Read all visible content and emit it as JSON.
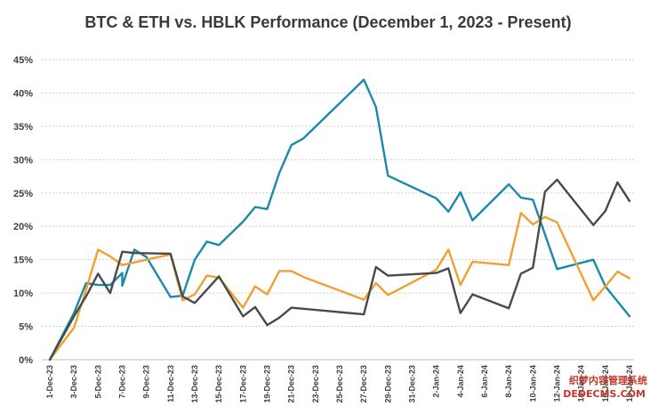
{
  "chart_data": {
    "type": "line",
    "title": "BTC & ETH vs. HBLK Performance (December 1, 2023 - Present)",
    "xlabel": "",
    "ylabel": "",
    "ylim": [
      0,
      45
    ],
    "yticks": [
      "0%",
      "5%",
      "10%",
      "15%",
      "20%",
      "25%",
      "30%",
      "35%",
      "40%",
      "45%"
    ],
    "x_tick_labels": [
      "1-Dec-23",
      "3-Dec-23",
      "5-Dec-23",
      "7-Dec-23",
      "9-Dec-23",
      "11-Dec-23",
      "13-Dec-23",
      "15-Dec-23",
      "17-Dec-23",
      "19-Dec-23",
      "21-Dec-23",
      "23-Dec-23",
      "25-Dec-23",
      "27-Dec-23",
      "29-Dec-23",
      "31-Dec-23",
      "2-Jan-24",
      "4-Jan-24",
      "6-Jan-24",
      "8-Jan-24",
      "10-Jan-24",
      "12-Jan-24",
      "14-Jan-24",
      "16-Jan-24",
      "18-Jan-24"
    ],
    "grid": true,
    "legend": "none",
    "series": [
      {
        "color": "#1a8aa8",
        "x": [
          "1-Dec-23",
          "3-Dec-23",
          "4-Dec-23",
          "5-Dec-23",
          "6-Dec-23",
          "7-Dec-23",
          "7-Dec-23",
          "8-Dec-23",
          "9-Dec-23",
          "11-Dec-23",
          "12-Dec-23",
          "13-Dec-23",
          "14-Dec-23",
          "15-Dec-23",
          "17-Dec-23",
          "18-Dec-23",
          "19-Dec-23",
          "20-Dec-23",
          "21-Dec-23",
          "22-Dec-23",
          "27-Dec-23",
          "28-Dec-23",
          "29-Dec-23",
          "2-Jan-24",
          "3-Jan-24",
          "4-Jan-24",
          "5-Jan-24",
          "8-Jan-24",
          "9-Jan-24",
          "10-Jan-24",
          "12-Jan-24",
          "15-Jan-24",
          "16-Jan-24",
          "18-Jan-24"
        ],
        "values": [
          0,
          7,
          11.5,
          11.2,
          11.2,
          13,
          11.1,
          16.5,
          15.4,
          9.4,
          9.6,
          15,
          17.7,
          17.2,
          20.7,
          22.9,
          22.6,
          28,
          32.2,
          33.2,
          42,
          37.9,
          27.6,
          24.2,
          22.2,
          25.1,
          20.9,
          26.3,
          24.3,
          24,
          13.6,
          15,
          11,
          6.5
        ]
      },
      {
        "color": "#f0a030",
        "x": [
          "1-Dec-23",
          "3-Dec-23",
          "4-Dec-23",
          "5-Dec-23",
          "6-Dec-23",
          "7-Dec-23",
          "8-Dec-23",
          "11-Dec-23",
          "12-Dec-23",
          "13-Dec-23",
          "14-Dec-23",
          "15-Dec-23",
          "17-Dec-23",
          "18-Dec-23",
          "19-Dec-23",
          "20-Dec-23",
          "21-Dec-23",
          "22-Dec-23",
          "27-Dec-23",
          "28-Dec-23",
          "29-Dec-23",
          "2-Jan-24",
          "3-Jan-24",
          "4-Jan-24",
          "5-Jan-24",
          "8-Jan-24",
          "9-Jan-24",
          "10-Jan-24",
          "11-Jan-24",
          "12-Jan-24",
          "15-Jan-24",
          "16-Jan-24",
          "17-Jan-24",
          "18-Jan-24"
        ],
        "values": [
          0,
          4.8,
          10.5,
          16.5,
          15.5,
          14.2,
          14.6,
          15.8,
          8.9,
          9.8,
          12.6,
          12.3,
          7.8,
          11,
          9.8,
          13.3,
          13.3,
          12.4,
          9,
          11.5,
          9.7,
          13.5,
          16.5,
          11.2,
          14.7,
          14.2,
          22,
          20.3,
          21.4,
          20.6,
          8.9,
          11,
          13.2,
          12.2
        ]
      },
      {
        "color": "#4a4a4a",
        "x": [
          "1-Dec-23",
          "3-Dec-23",
          "4-Dec-23",
          "5-Dec-23",
          "6-Dec-23",
          "7-Dec-23",
          "8-Dec-23",
          "11-Dec-23",
          "12-Dec-23",
          "13-Dec-23",
          "15-Dec-23",
          "17-Dec-23",
          "18-Dec-23",
          "19-Dec-23",
          "20-Dec-23",
          "21-Dec-23",
          "27-Dec-23",
          "28-Dec-23",
          "29-Dec-23",
          "2-Jan-24",
          "3-Jan-24",
          "4-Jan-24",
          "5-Jan-24",
          "8-Jan-24",
          "9-Jan-24",
          "10-Jan-24",
          "11-Jan-24",
          "12-Jan-24",
          "15-Jan-24",
          "16-Jan-24",
          "17-Jan-24",
          "18-Jan-24"
        ],
        "values": [
          0,
          6.5,
          9.5,
          12.9,
          10,
          16.2,
          16,
          15.9,
          9.5,
          8.5,
          12.5,
          6.5,
          7.9,
          5.2,
          6.3,
          7.8,
          6.8,
          13.9,
          12.6,
          13,
          13.7,
          7,
          9.8,
          7.7,
          12.9,
          13.8,
          25.2,
          27,
          20.2,
          22.3,
          26.6,
          23.8
        ]
      }
    ]
  },
  "watermark": {
    "line1": "织梦内容管理系统",
    "line2": "DEDECMS.COM"
  }
}
